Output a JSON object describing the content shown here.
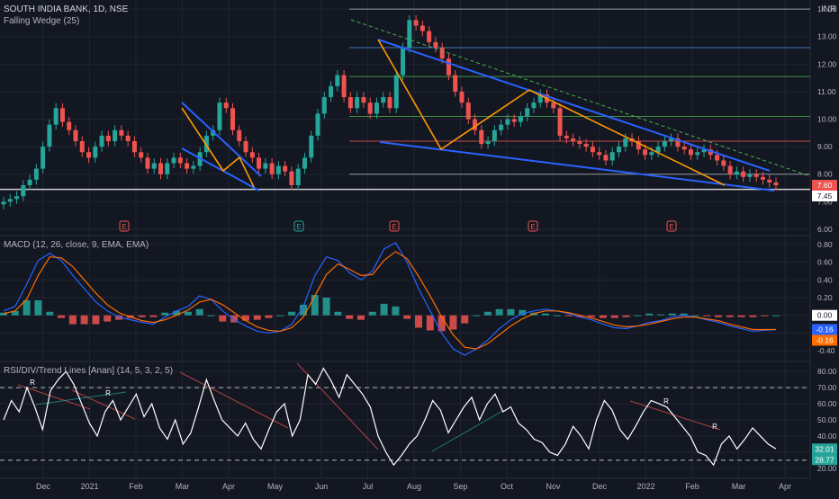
{
  "header": {
    "symbol_title": "SOUTH INDIA BANK, 1D, NSE",
    "indicator_label": "Falling Wedge (25)",
    "currency": "INR"
  },
  "macd": {
    "label": "MACD (12, 26, close, 9, EMA, EMA)"
  },
  "rsi": {
    "label": "RSI/DIV/Trend Lines [Anan] (14, 5, 3, 2, 5)"
  },
  "colors": {
    "background": "#131722",
    "grid": "#1f2430",
    "up": "#26a69a",
    "down": "#ef5350",
    "pattern_blue": "#2962ff",
    "pattern_orange": "#ff9800",
    "rsi_line": "#ffffff",
    "macd_line": "#2962ff",
    "signal_line": "#ff6d00"
  },
  "chart_data": [
    {
      "type": "candlestick",
      "title": "SOUTH INDIA BANK, 1D, NSE",
      "y_ticks": [
        "6.00",
        "7.00",
        "8.00",
        "9.00",
        "10.00",
        "11.00",
        "12.00",
        "13.00",
        "14.00"
      ],
      "ylim": [
        5.9,
        14.2
      ],
      "x_ticks": [
        "Dec",
        "2021",
        "Feb",
        "Mar",
        "Apr",
        "May",
        "Jun",
        "Jul",
        "Aug",
        "Sep",
        "Oct",
        "Nov",
        "Dec",
        "2022",
        "Feb",
        "Mar",
        "Apr"
      ],
      "price_labels": [
        {
          "text": "7.60",
          "value": 7.6,
          "color": "#ef5350"
        },
        {
          "text": "7.45",
          "value": 7.45,
          "color": "#ffffff"
        }
      ],
      "horizontal_levels": [
        14.0,
        12.6,
        11.55,
        10.1,
        9.2,
        8.0,
        7.45
      ],
      "earnings_markers": [
        "E",
        "E",
        "E",
        "E",
        "E"
      ],
      "close_path": [
        7.0,
        7.1,
        7.2,
        7.6,
        7.8,
        8.2,
        9.0,
        9.8,
        10.4,
        9.9,
        9.6,
        9.2,
        8.8,
        8.6,
        9.0,
        9.4,
        9.2,
        9.6,
        9.4,
        9.2,
        8.8,
        8.6,
        8.2,
        8.4,
        8.0,
        8.4,
        8.6,
        8.4,
        8.2,
        8.3,
        8.8,
        9.4,
        9.6,
        10.6,
        10.4,
        9.6,
        9.2,
        8.8,
        8.6,
        8.2,
        8.4,
        8.0,
        8.3,
        8.1,
        7.6,
        8.2,
        8.6,
        9.4,
        10.2,
        10.8,
        11.2,
        11.6,
        10.8,
        10.4,
        10.8,
        10.6,
        10.2,
        10.6,
        10.8,
        10.4,
        11.6,
        12.6,
        13.6,
        13.4,
        13.2,
        12.8,
        12.6,
        12.2,
        11.6,
        11.0,
        10.6,
        10.0,
        9.6,
        9.1,
        9.2,
        9.6,
        9.8,
        10.0,
        9.9,
        10.1,
        10.4,
        10.6,
        10.9,
        10.6,
        10.4,
        9.4,
        9.3,
        9.2,
        9.1,
        9.0,
        8.8,
        8.7,
        8.5,
        8.8,
        9.0,
        9.3,
        9.2,
        8.9,
        8.7,
        8.8,
        9.0,
        9.2,
        9.3,
        9.0,
        8.9,
        8.7,
        8.8,
        8.9,
        8.7,
        8.5,
        8.3,
        8.0,
        8.1,
        7.9,
        8.0,
        7.9,
        7.8,
        7.7,
        7.6
      ]
    },
    {
      "type": "macd",
      "title": "MACD (12, 26, close, 9, EMA, EMA)",
      "y_ticks": [
        "0.80",
        "0.60",
        "0.40",
        "0.20",
        "0.00",
        "-0.20",
        "-0.40"
      ],
      "ylim": [
        -0.48,
        0.86
      ],
      "value_labels": [
        {
          "text": "0.00",
          "value": 0.0,
          "color": "#ffffff"
        },
        {
          "text": "-0.16",
          "value": -0.16,
          "color": "#2962ff"
        },
        {
          "text": "-0.16",
          "value": -0.16,
          "color": "#ff6d00"
        }
      ],
      "macd_path": [
        0.05,
        0.1,
        0.35,
        0.62,
        0.7,
        0.62,
        0.45,
        0.3,
        0.15,
        0.05,
        -0.02,
        -0.05,
        -0.08,
        -0.1,
        -0.02,
        0.05,
        0.1,
        0.22,
        0.18,
        0.05,
        -0.05,
        -0.12,
        -0.18,
        -0.2,
        -0.18,
        -0.1,
        0.1,
        0.45,
        0.66,
        0.62,
        0.48,
        0.4,
        0.5,
        0.75,
        0.82,
        0.6,
        0.3,
        0.05,
        -0.2,
        -0.38,
        -0.45,
        -0.38,
        -0.28,
        -0.15,
        -0.05,
        0.02,
        0.05,
        0.07,
        0.05,
        0.02,
        -0.02,
        -0.05,
        -0.1,
        -0.14,
        -0.15,
        -0.12,
        -0.08,
        -0.06,
        -0.02,
        0.0,
        -0.02,
        -0.05,
        -0.08,
        -0.12,
        -0.15,
        -0.18,
        -0.17,
        -0.16
      ],
      "signal_path": [
        0.02,
        0.05,
        0.18,
        0.45,
        0.66,
        0.65,
        0.55,
        0.4,
        0.25,
        0.12,
        0.03,
        -0.02,
        -0.06,
        -0.08,
        -0.05,
        0.0,
        0.06,
        0.15,
        0.18,
        0.12,
        0.03,
        -0.06,
        -0.13,
        -0.17,
        -0.18,
        -0.14,
        -0.02,
        0.22,
        0.46,
        0.58,
        0.52,
        0.45,
        0.46,
        0.62,
        0.72,
        0.64,
        0.44,
        0.22,
        -0.02,
        -0.22,
        -0.36,
        -0.38,
        -0.32,
        -0.22,
        -0.12,
        -0.04,
        0.02,
        0.05,
        0.05,
        0.03,
        0.0,
        -0.03,
        -0.07,
        -0.11,
        -0.13,
        -0.12,
        -0.1,
        -0.07,
        -0.04,
        -0.02,
        -0.02,
        -0.04,
        -0.06,
        -0.1,
        -0.13,
        -0.16,
        -0.16,
        -0.16
      ]
    },
    {
      "type": "rsi",
      "title": "RSI/DIV/Trend Lines [Anan] (14, 5, 3, 2, 5)",
      "y_ticks": [
        "80.00",
        "70.00",
        "60.00",
        "50.00",
        "40.00",
        "30.00",
        "20.00"
      ],
      "ylim": [
        16,
        84
      ],
      "value_labels": [
        {
          "text": "32.01",
          "value": 32.01,
          "color": "#26a69a"
        },
        {
          "text": "28.77",
          "value": 28.77,
          "color": "#26a69a"
        }
      ],
      "reference_levels": [
        70,
        25
      ],
      "divergence_markers": [
        "R",
        "R",
        "R",
        "R"
      ],
      "rsi_path": [
        50,
        62,
        55,
        70,
        58,
        44,
        68,
        75,
        80,
        72,
        60,
        48,
        40,
        55,
        62,
        50,
        58,
        66,
        52,
        60,
        45,
        38,
        50,
        35,
        42,
        58,
        75,
        62,
        50,
        45,
        40,
        48,
        38,
        32,
        44,
        55,
        60,
        40,
        50,
        78,
        72,
        82,
        74,
        64,
        78,
        72,
        66,
        58,
        40,
        30,
        22,
        28,
        35,
        40,
        50,
        62,
        56,
        42,
        50,
        58,
        64,
        50,
        60,
        66,
        55,
        58,
        48,
        44,
        38,
        36,
        30,
        28,
        35,
        46,
        40,
        32,
        50,
        62,
        56,
        44,
        38,
        46,
        55,
        62,
        60,
        58,
        52,
        46,
        40,
        30,
        28,
        22,
        35,
        40,
        32,
        38,
        45,
        40,
        35,
        32
      ]
    }
  ]
}
